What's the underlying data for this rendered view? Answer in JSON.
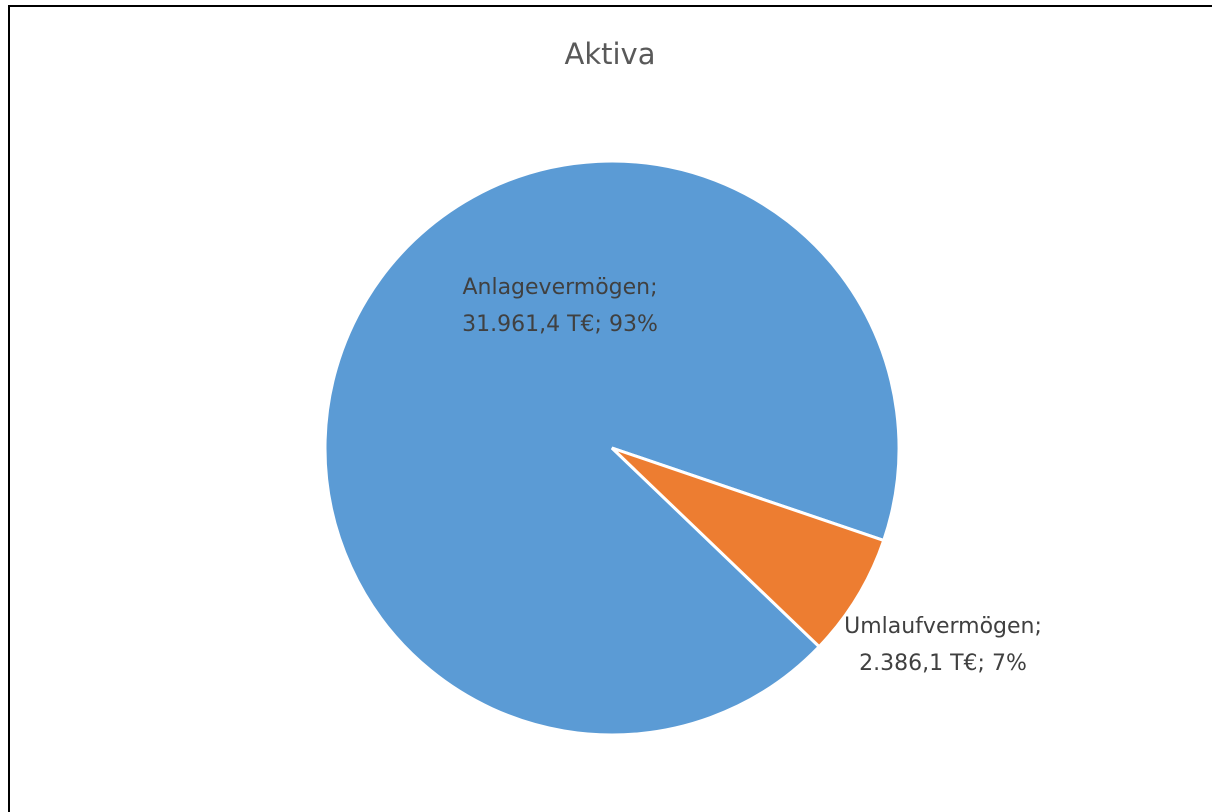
{
  "chart_data": {
    "type": "pie",
    "title": "Aktiva",
    "categories": [
      "Anlagevermögen;",
      "Umlaufvermögen;"
    ],
    "values": [
      31961.4,
      2386.1
    ],
    "value_labels": [
      "31.961,4 T€; 93%",
      "2.386,1 T€; 7%"
    ],
    "colors": [
      "#5b9bd5",
      "#ed7d31"
    ]
  }
}
